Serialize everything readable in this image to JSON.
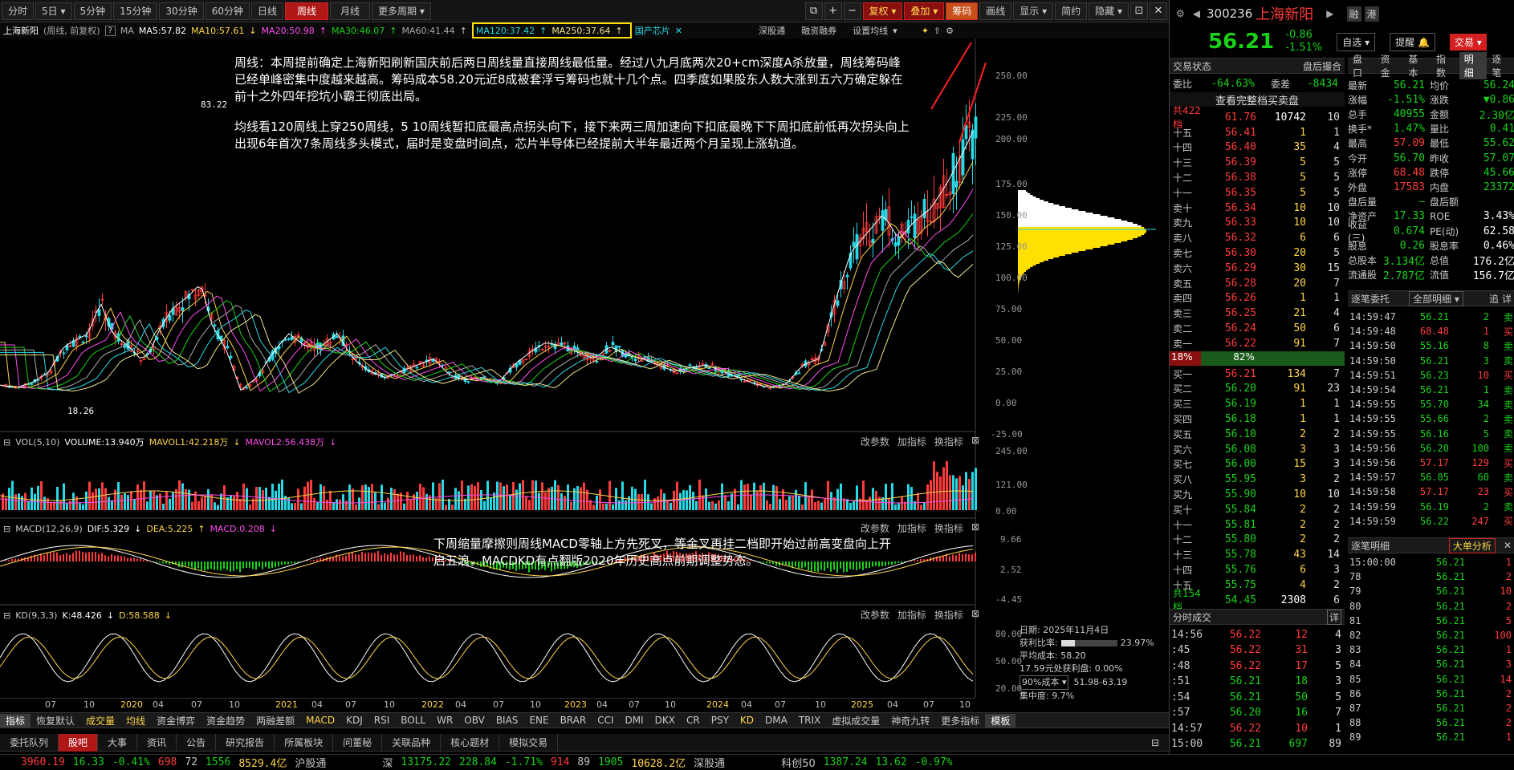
{
  "toolbar": {
    "periods": [
      "分时",
      "5日",
      "5分钟",
      "15分钟",
      "30分钟",
      "60分钟",
      "日线",
      "周线",
      "月线",
      "更多周期"
    ],
    "active": "周线",
    "icons": [
      "+",
      "−"
    ],
    "fuquan": "复权",
    "diejia": "叠加",
    "chouma": "筹码",
    "huaxian": "画线",
    "xianshi": "显示",
    "jianyue": "简约",
    "yincang": "隐藏"
  },
  "mahead": {
    "name": "上海新阳",
    "period": "(周线, 前复权)",
    "ma": "MA",
    "ma5": "MA5:57.82",
    "ma10": "MA10:57.61",
    "ma20": "MA20:50.98",
    "ma30": "MA30:46.07",
    "ma60": "MA60:41.44",
    "ma120": "MA120:37.42",
    "ma250": "MA250:37.64",
    "concept": "国产芯片",
    "links": [
      "深股通",
      "融资融券",
      "设置均线"
    ]
  },
  "notes": {
    "note1": "周线：本周提前确定上海新阳刷新国庆前后两日周线量直接周线最低量。经过八九月底两次20+cm深度A杀放量，周线筹码峰已经单峰密集中度越来越高。筹码成本58.20元近8成被套浮亏筹码也就十几个点。四季度如果股东人数大涨到五六万确定躲在前十之外四年挖坑小霸王彻底出局。",
    "note2": "均线看120周线上穿250周线，5 10周线暂扣底最高点拐头向下，接下来两三周加速向下扣底最晚下下周扣底前低再次拐头向上出现6年首次7条周线多头模式，届时是变盘时间点，芯片半导体已经提前大半年最近两个月呈现上涨轨道。",
    "note3": "下周缩量摩擦则周线MACD零轴上方先死叉，等金叉再挂二档即开始过前高变盘向上开启五浪，MACDKD有点翻版2020年历史高点前期调整势态。"
  },
  "price_axis": [
    "250.00",
    "225.00",
    "200.00",
    "175.00",
    "150.00",
    "125.00",
    "100.00",
    "75.00",
    "50.00",
    "25.00",
    "0.00",
    "-25.00"
  ],
  "hi_label": "83.22",
  "lo_label": "18.26",
  "vol": {
    "title": "VOL(5,10)",
    "volume": "VOLUME:13.940万",
    "mavol1": "MAVOL1:42.218万",
    "mavol2": "MAVOL2:56.438万",
    "axis": [
      "245.00",
      "121.00",
      "0.00"
    ]
  },
  "macd": {
    "title": "MACD(12,26,9)",
    "dif": "DIF:5.329",
    "dea": "DEA:5.225",
    "macd": "MACD:0.208",
    "axis": [
      "9.66",
      "2.52",
      "-4.45"
    ]
  },
  "kd": {
    "title": "KD(9,3,3)",
    "k": "K:48.426",
    "d": "D:58.588",
    "axis": [
      "80.00",
      "50.00",
      "20.00"
    ]
  },
  "panel_links": [
    "改参数",
    "加指标",
    "换指标"
  ],
  "chip": {
    "date": "日期: 2025年11月4日",
    "profit_label": "获利比率:",
    "profit": "23.97%",
    "avg": "平均成本: 58.20",
    "zero": "17.59元处获利盘: 0.00%",
    "cost_sel": "90%成本",
    "cost_range": "51.98-63.19",
    "conc": "集中度: 9.7%"
  },
  "dates": [
    "07",
    "10",
    "2020",
    "04",
    "07",
    "10",
    "2021",
    "04",
    "07",
    "10",
    "2022",
    "04",
    "07",
    "10",
    "2023",
    "04",
    "07",
    "10",
    "2024",
    "04",
    "07",
    "10",
    "2025",
    "04",
    "07",
    "10"
  ],
  "idxtabs": [
    "指标",
    "恢复默认",
    "成交量",
    "均线",
    "资金博弈",
    "资金趋势",
    "两融差额",
    "MACD",
    "KDJ",
    "RSI",
    "BOLL",
    "WR",
    "OBV",
    "BIAS",
    "ENE",
    "BRAR",
    "CCI",
    "DMI",
    "DKX",
    "CR",
    "PSY",
    "KD",
    "DMA",
    "TRIX",
    "虚拟成交量",
    "神奇九转",
    "更多指标",
    "模板"
  ],
  "bottabs": [
    "委托队列",
    "股吧",
    "大事",
    "资讯",
    "公告",
    "研究报告",
    "所属板块",
    "问董秘",
    "关联品种",
    "核心题材",
    "模拟交易"
  ],
  "status": {
    "sh": "3960.19",
    "sh_chg": "16.33",
    "sh_pct": "-0.41%",
    "sh_a": "698",
    "sh_b": "72",
    "sh_c": "1556",
    "sh_amt": "8529.4亿",
    "hgt": "沪股通",
    "sz_lbl": "深",
    "sz": "13175.22",
    "sz_chg": "228.84",
    "sz_pct": "-1.71%",
    "sz_a": "914",
    "sz_b": "89",
    "sz_c": "1905",
    "sz_amt": "10628.2亿",
    "sgt": "深股通",
    "kc": "科创50",
    "kc_v": "1387.24",
    "kc_chg": "13.62",
    "kc_pct": "-0.97%"
  },
  "quote": {
    "code": "300236",
    "name": "上海新阳",
    "tag1": "融",
    "tag2": "港",
    "price": "56.21",
    "chg": "-0.86",
    "pct": "-1.51%",
    "zixuan": "自选",
    "tixing": "提醒",
    "jiaoyi": "交易"
  },
  "trade_state": {
    "label": "交易状态",
    "after": "盘后撮合",
    "weibi": "委比",
    "weibi_v": "-64.63%",
    "weicha": "委差",
    "weicha_v": "-8434",
    "full_btn": "查看完整档买卖盘",
    "total_asks": "共422档",
    "ask_avg": "61.76",
    "ask_vol": "10742",
    "ask_n": "10",
    "total_bids": "共154档",
    "bid_avg": "54.45",
    "bid_vol": "2308",
    "bid_n": "6",
    "bar_l": "18%",
    "bar_r": "82%"
  },
  "asks": [
    [
      "十五",
      "56.41",
      "1",
      "1"
    ],
    [
      "十四",
      "56.40",
      "35",
      "4"
    ],
    [
      "十三",
      "56.39",
      "5",
      "5"
    ],
    [
      "十二",
      "56.38",
      "5",
      "5"
    ],
    [
      "十一",
      "56.35",
      "5",
      "5"
    ],
    [
      "卖十",
      "56.34",
      "10",
      "10"
    ],
    [
      "卖九",
      "56.33",
      "10",
      "10"
    ],
    [
      "卖八",
      "56.32",
      "6",
      "6"
    ],
    [
      "卖七",
      "56.30",
      "20",
      "5"
    ],
    [
      "卖六",
      "56.29",
      "30",
      "15"
    ],
    [
      "卖五",
      "56.28",
      "20",
      "7"
    ],
    [
      "卖四",
      "56.26",
      "1",
      "1"
    ],
    [
      "卖三",
      "56.25",
      "21",
      "4"
    ],
    [
      "卖二",
      "56.24",
      "50",
      "6"
    ],
    [
      "卖一",
      "56.22",
      "91",
      "7"
    ]
  ],
  "bids": [
    [
      "买一",
      "56.21",
      "134",
      "7"
    ],
    [
      "买二",
      "56.20",
      "91",
      "23"
    ],
    [
      "买三",
      "56.19",
      "1",
      "1"
    ],
    [
      "买四",
      "56.18",
      "1",
      "1"
    ],
    [
      "买五",
      "56.10",
      "2",
      "2"
    ],
    [
      "买六",
      "56.08",
      "3",
      "3"
    ],
    [
      "买七",
      "56.00",
      "15",
      "3"
    ],
    [
      "买八",
      "55.95",
      "3",
      "2"
    ],
    [
      "买九",
      "55.90",
      "10",
      "10"
    ],
    [
      "买十",
      "55.84",
      "2",
      "2"
    ],
    [
      "十一",
      "55.81",
      "2",
      "2"
    ],
    [
      "十二",
      "55.80",
      "2",
      "2"
    ],
    [
      "十三",
      "55.78",
      "43",
      "14"
    ],
    [
      "十四",
      "55.76",
      "6",
      "3"
    ],
    [
      "十五",
      "55.75",
      "4",
      "2"
    ]
  ],
  "stats": {
    "tabs": [
      "盘口",
      "资金",
      "基本",
      "指数",
      "明细",
      "逐笔"
    ],
    "rows": [
      [
        "均价",
        "56.21",
        "56.24"
      ],
      [
        "涨幅",
        "-1.51%",
        "▼0.86"
      ],
      [
        "金额",
        "40955",
        "2.30亿"
      ],
      [
        "量比",
        "1.47%",
        "0.41"
      ],
      [
        "最低",
        "57.09",
        "55.62"
      ],
      [
        "昨收",
        "56.70",
        "57.07"
      ],
      [
        "跌停",
        "68.48",
        "45.66"
      ],
      [
        "内盘",
        "17583",
        "23372"
      ],
      [
        "盘后额",
        "—",
        ""
      ],
      [
        "ROE",
        "17.33",
        "3.43%"
      ],
      [
        "PE(动)",
        "0.674",
        "62.58"
      ],
      [
        "股息率",
        "0.26",
        "0.46%"
      ],
      [
        "总值",
        "3.134亿",
        "176.2亿"
      ],
      [
        "流值",
        "2.787亿",
        "156.7亿"
      ]
    ],
    "labels": [
      [
        "最新",
        "均价"
      ],
      [
        "涨幅",
        "涨跌"
      ],
      [
        "总手",
        "金额"
      ],
      [
        "换手*",
        "量比"
      ],
      [
        "最高",
        "最低"
      ],
      [
        "今开",
        "昨收"
      ],
      [
        "涨停",
        "跌停"
      ],
      [
        "外盘",
        "内盘"
      ],
      [
        "盘后量",
        "盘后额"
      ],
      [
        "净资产",
        "ROE"
      ],
      [
        "收益(三)",
        "PE(动)"
      ],
      [
        "股息",
        "股息率"
      ],
      [
        "总股本",
        "总值"
      ],
      [
        "流通股",
        "流值"
      ]
    ]
  },
  "zhubi_title": "逐笔委托",
  "zhubi_sel": "全部明细",
  "zhubi_btns": [
    "追",
    "详"
  ],
  "zhubi": [
    [
      "14:59:47",
      "56.21",
      "2",
      "卖"
    ],
    [
      "14:59:48",
      "68.48",
      "1",
      "买"
    ],
    [
      "14:59:50",
      "55.16",
      "8",
      "卖"
    ],
    [
      "14:59:50",
      "56.21",
      "3",
      "卖"
    ],
    [
      "14:59:51",
      "56.23",
      "10",
      "买"
    ],
    [
      "14:59:54",
      "56.21",
      "1",
      "卖"
    ],
    [
      "14:59:55",
      "55.70",
      "34",
      "卖"
    ],
    [
      "14:59:55",
      "55.66",
      "2",
      "卖"
    ],
    [
      "14:59:55",
      "56.16",
      "5",
      "卖"
    ],
    [
      "14:59:56",
      "56.20",
      "100",
      "卖"
    ],
    [
      "14:59:56",
      "57.17",
      "129",
      "买"
    ],
    [
      "14:59:57",
      "56.05",
      "60",
      "卖"
    ],
    [
      "14:59:58",
      "57.17",
      "23",
      "买"
    ],
    [
      "14:59:59",
      "56.19",
      "2",
      "卖"
    ],
    [
      "14:59:59",
      "56.22",
      "247",
      "买"
    ]
  ],
  "zhubimx_title": "逐笔明细",
  "dadan": "大单分析",
  "zhubimx": [
    [
      "15:00:00",
      "56.21",
      "1"
    ],
    [
      "78",
      "56.21",
      "2"
    ],
    [
      "79",
      "56.21",
      "10"
    ],
    [
      "80",
      "56.21",
      "2"
    ],
    [
      "81",
      "56.21",
      "5"
    ],
    [
      "82",
      "56.21",
      "100"
    ],
    [
      "83",
      "56.21",
      "1"
    ],
    [
      "84",
      "56.21",
      "3"
    ],
    [
      "85",
      "56.21",
      "14"
    ],
    [
      "86",
      "56.21",
      "2"
    ],
    [
      "87",
      "56.21",
      "2"
    ],
    [
      "88",
      "56.21",
      "2"
    ],
    [
      "89",
      "56.21",
      "1"
    ]
  ],
  "fenshi_title": "分时成交",
  "fenshi_btn": "详",
  "fenshi": [
    [
      "14:56",
      "56.22",
      "12",
      "4"
    ],
    [
      ":45",
      "56.22",
      "31",
      "3"
    ],
    [
      ":48",
      "56.22",
      "17",
      "5"
    ],
    [
      ":51",
      "56.21",
      "18",
      "3"
    ],
    [
      ":54",
      "56.21",
      "50",
      "5"
    ],
    [
      ":57",
      "56.20",
      "16",
      "7"
    ],
    [
      "14:57",
      "56.22",
      "10",
      "1"
    ],
    [
      "15:00",
      "56.21",
      "697",
      "89"
    ]
  ]
}
